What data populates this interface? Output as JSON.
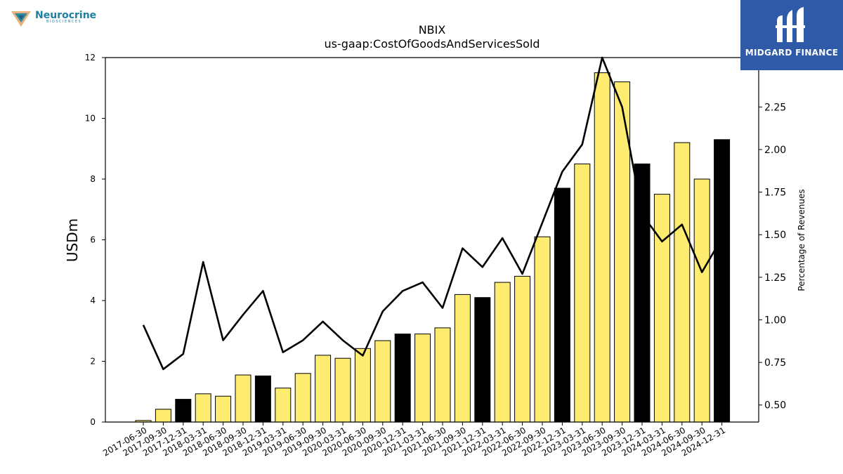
{
  "branding": {
    "company_logo_text": "Neurocrine",
    "company_logo_subtext": "BIOSCIENCES",
    "publisher_name": "MIDGARD FINANCE"
  },
  "colors": {
    "bar_default": "#fdec6f",
    "bar_highlight": "#000000",
    "line": "#000000",
    "brand_box": "#2e5aa8"
  },
  "chart_data": {
    "type": "bar",
    "title": "NBIX",
    "subtitle": "us-gaap:CostOfGoodsAndServicesSold",
    "ylabel": "USDm",
    "y2label": "Percentage of Revenues",
    "ylim": [
      0,
      12
    ],
    "y2lim": [
      0.4,
      2.54
    ],
    "yticks": [
      "0",
      "2",
      "4",
      "6",
      "8",
      "10",
      "12"
    ],
    "y2ticks": [
      "0.50",
      "0.75",
      "1.00",
      "1.25",
      "1.50",
      "1.75",
      "2.00",
      "2.25"
    ],
    "grid": false,
    "categories": [
      "2017-06-30",
      "2017-09-30",
      "2017-12-31",
      "2018-03-31",
      "2018-06-30",
      "2018-09-30",
      "2018-12-31",
      "2019-03-31",
      "2019-06-30",
      "2019-09-30",
      "2020-03-31",
      "2020-06-30",
      "2020-09-30",
      "2020-12-31",
      "2021-03-31",
      "2021-06-30",
      "2021-09-30",
      "2021-12-31",
      "2022-03-31",
      "2022-06-30",
      "2022-09-30",
      "2022-12-31",
      "2023-03-31",
      "2023-06-30",
      "2023-09-30",
      "2023-12-31",
      "2024-03-31",
      "2024-06-30",
      "2024-09-30",
      "2024-12-31"
    ],
    "series": [
      {
        "kind": "bar",
        "axis": "left",
        "values": [
          0.05,
          0.42,
          0.75,
          0.93,
          0.85,
          1.55,
          1.52,
          1.12,
          1.6,
          2.2,
          2.1,
          2.42,
          2.68,
          2.9,
          2.9,
          3.1,
          4.2,
          4.1,
          4.6,
          4.8,
          6.1,
          7.7,
          8.5,
          11.5,
          11.2,
          8.5,
          7.5,
          9.2,
          8.0,
          9.3
        ],
        "highlighted": [
          false,
          false,
          true,
          false,
          false,
          false,
          true,
          false,
          false,
          false,
          false,
          false,
          false,
          true,
          false,
          false,
          false,
          true,
          false,
          false,
          false,
          true,
          false,
          false,
          false,
          true,
          false,
          false,
          false,
          true
        ]
      },
      {
        "kind": "line",
        "axis": "right",
        "values": [
          0.97,
          0.71,
          0.8,
          1.34,
          0.88,
          1.03,
          1.17,
          0.81,
          0.88,
          0.99,
          0.88,
          0.79,
          1.05,
          1.17,
          1.22,
          1.07,
          1.42,
          1.31,
          1.48,
          1.27,
          1.57,
          1.87,
          2.03,
          2.54,
          2.25,
          1.62,
          1.46,
          1.56,
          1.28,
          1.48
        ]
      }
    ]
  }
}
